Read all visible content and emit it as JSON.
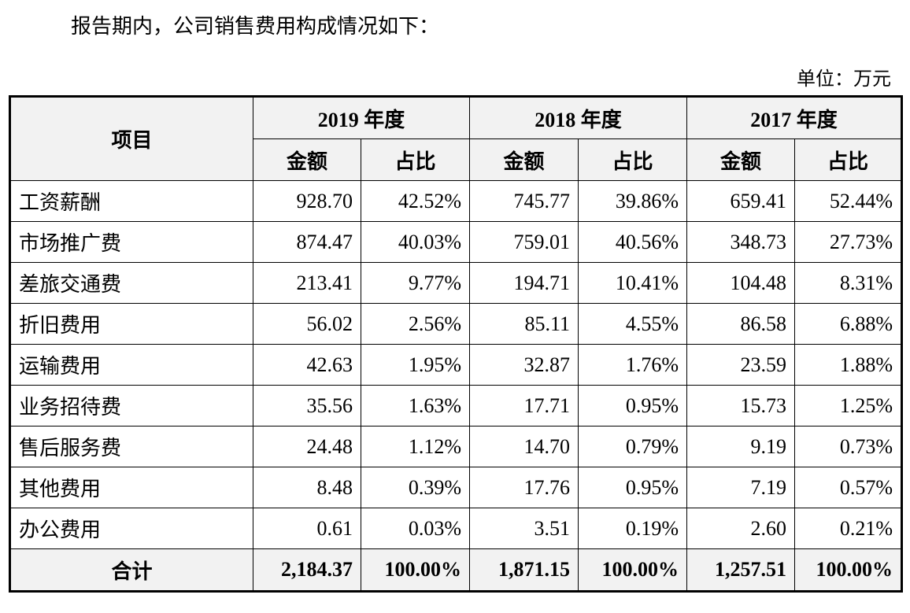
{
  "intro": "报告期内，公司销售费用构成情况如下：",
  "unit": "单位：万元",
  "table": {
    "header_item": "项目",
    "years": [
      "2019 年度",
      "2018 年度",
      "2017 年度"
    ],
    "sub_amount": "金额",
    "sub_ratio": "占比",
    "rows": [
      {
        "name": "工资薪酬",
        "cells": [
          "928.70",
          "42.52%",
          "745.77",
          "39.86%",
          "659.41",
          "52.44%"
        ]
      },
      {
        "name": "市场推广费",
        "cells": [
          "874.47",
          "40.03%",
          "759.01",
          "40.56%",
          "348.73",
          "27.73%"
        ]
      },
      {
        "name": "差旅交通费",
        "cells": [
          "213.41",
          "9.77%",
          "194.71",
          "10.41%",
          "104.48",
          "8.31%"
        ]
      },
      {
        "name": "折旧费用",
        "cells": [
          "56.02",
          "2.56%",
          "85.11",
          "4.55%",
          "86.58",
          "6.88%"
        ]
      },
      {
        "name": "运输费用",
        "cells": [
          "42.63",
          "1.95%",
          "32.87",
          "1.76%",
          "23.59",
          "1.88%"
        ]
      },
      {
        "name": "业务招待费",
        "cells": [
          "35.56",
          "1.63%",
          "17.71",
          "0.95%",
          "15.73",
          "1.25%"
        ]
      },
      {
        "name": "售后服务费",
        "cells": [
          "24.48",
          "1.12%",
          "14.70",
          "0.79%",
          "9.19",
          "0.73%"
        ]
      },
      {
        "name": "其他费用",
        "cells": [
          "8.48",
          "0.39%",
          "17.76",
          "0.95%",
          "7.19",
          "0.57%"
        ]
      },
      {
        "name": "办公费用",
        "cells": [
          "0.61",
          "0.03%",
          "3.51",
          "0.19%",
          "2.60",
          "0.21%"
        ]
      }
    ],
    "total": {
      "name": "合计",
      "cells": [
        "2,184.37",
        "100.00%",
        "1,871.15",
        "100.00%",
        "1,257.51",
        "100.00%"
      ]
    }
  }
}
